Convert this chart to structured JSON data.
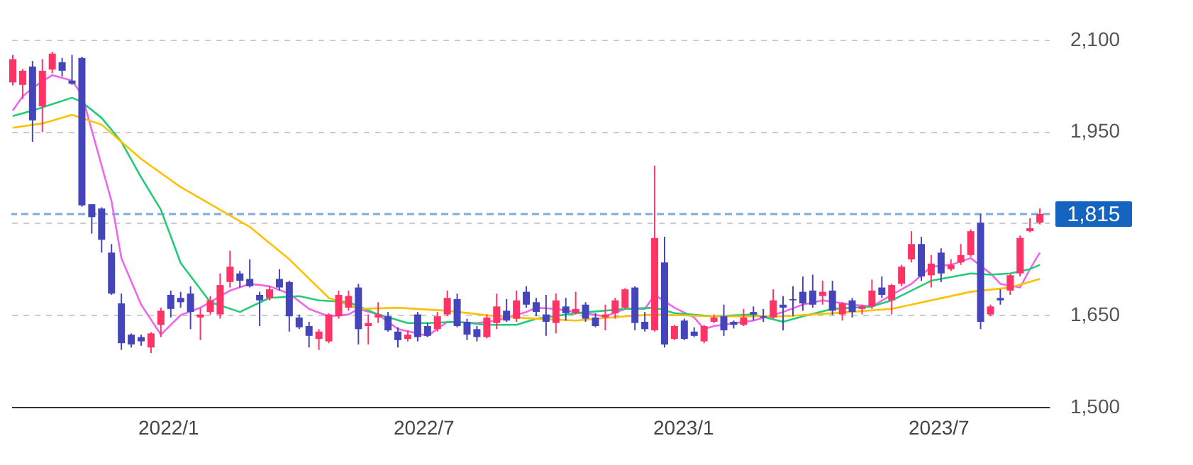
{
  "chart_data": {
    "type": "candlestick",
    "x": [
      "2021-09-13",
      "2021-09-20",
      "2021-09-27",
      "2021-10-04",
      "2021-10-11",
      "2021-10-18",
      "2021-10-25",
      "2021-11-01",
      "2021-11-08",
      "2021-11-15",
      "2021-11-22",
      "2021-11-29",
      "2021-12-06",
      "2021-12-13",
      "2021-12-20",
      "2021-12-27",
      "2022-01-03",
      "2022-01-10",
      "2022-01-17",
      "2022-01-24",
      "2022-01-31",
      "2022-02-07",
      "2022-02-14",
      "2022-02-21",
      "2022-02-28",
      "2022-03-07",
      "2022-03-14",
      "2022-03-21",
      "2022-03-28",
      "2022-04-04",
      "2022-04-11",
      "2022-04-18",
      "2022-04-25",
      "2022-05-02",
      "2022-05-09",
      "2022-05-16",
      "2022-05-23",
      "2022-05-30",
      "2022-06-06",
      "2022-06-13",
      "2022-06-20",
      "2022-06-27",
      "2022-07-04",
      "2022-07-11",
      "2022-07-18",
      "2022-07-25",
      "2022-08-01",
      "2022-08-08",
      "2022-08-15",
      "2022-08-22",
      "2022-08-29",
      "2022-09-05",
      "2022-09-12",
      "2022-09-19",
      "2022-09-26",
      "2022-10-03",
      "2022-10-10",
      "2022-10-17",
      "2022-10-24",
      "2022-10-31",
      "2022-11-07",
      "2022-11-14",
      "2022-11-21",
      "2022-11-28",
      "2022-12-05",
      "2022-12-12",
      "2022-12-19",
      "2022-12-26",
      "2023-01-02",
      "2023-01-09",
      "2023-01-16",
      "2023-01-23",
      "2023-01-30",
      "2023-02-06",
      "2023-02-13",
      "2023-02-20",
      "2023-02-27",
      "2023-03-06",
      "2023-03-13",
      "2023-03-20",
      "2023-03-27",
      "2023-04-03",
      "2023-04-10",
      "2023-04-17",
      "2023-04-24",
      "2023-05-01",
      "2023-05-08",
      "2023-05-15",
      "2023-05-22",
      "2023-05-29",
      "2023-06-05",
      "2023-06-12",
      "2023-06-19",
      "2023-06-26",
      "2023-07-03",
      "2023-07-10",
      "2023-07-17",
      "2023-07-24",
      "2023-07-31",
      "2023-08-07",
      "2023-08-14",
      "2023-08-21",
      "2023-08-28",
      "2023-09-04",
      "2023-09-11"
    ],
    "ohlc": [
      [
        2030,
        2075,
        2025,
        2068
      ],
      [
        2026,
        2052,
        2003,
        2049
      ],
      [
        2056,
        2065,
        1933,
        1968
      ],
      [
        1991,
        2068,
        1949,
        2049
      ],
      [
        2051,
        2080,
        2045,
        2077
      ],
      [
        2063,
        2070,
        2040,
        2049
      ],
      [
        2033,
        2075,
        2026,
        2028
      ],
      [
        2070,
        2072,
        1827,
        1829
      ],
      [
        1831,
        1831,
        1783,
        1810
      ],
      [
        1824,
        1826,
        1752,
        1773
      ],
      [
        1752,
        1766,
        1683,
        1685
      ],
      [
        1669,
        1685,
        1593,
        1604
      ],
      [
        1618,
        1620,
        1597,
        1602
      ],
      [
        1614,
        1618,
        1600,
        1607
      ],
      [
        1597,
        1622,
        1588,
        1620
      ],
      [
        1634,
        1662,
        1614,
        1657
      ],
      [
        1683,
        1690,
        1646,
        1660
      ],
      [
        1678,
        1688,
        1662,
        1671
      ],
      [
        1685,
        1697,
        1627,
        1655
      ],
      [
        1646,
        1662,
        1609,
        1651
      ],
      [
        1655,
        1681,
        1651,
        1674
      ],
      [
        1651,
        1718,
        1644,
        1699
      ],
      [
        1704,
        1755,
        1695,
        1729
      ],
      [
        1718,
        1722,
        1695,
        1706
      ],
      [
        1709,
        1741,
        1695,
        1697
      ],
      [
        1683,
        1688,
        1632,
        1674
      ],
      [
        1678,
        1697,
        1674,
        1692
      ],
      [
        1709,
        1725,
        1690,
        1695
      ],
      [
        1704,
        1706,
        1623,
        1648
      ],
      [
        1646,
        1651,
        1627,
        1630
      ],
      [
        1632,
        1639,
        1597,
        1616
      ],
      [
        1611,
        1627,
        1593,
        1623
      ],
      [
        1607,
        1653,
        1604,
        1651
      ],
      [
        1648,
        1690,
        1644,
        1683
      ],
      [
        1662,
        1690,
        1657,
        1681
      ],
      [
        1695,
        1701,
        1602,
        1627
      ],
      [
        1632,
        1651,
        1602,
        1637
      ],
      [
        1646,
        1671,
        1637,
        1651
      ],
      [
        1648,
        1655,
        1623,
        1625
      ],
      [
        1623,
        1630,
        1597,
        1609
      ],
      [
        1611,
        1625,
        1607,
        1618
      ],
      [
        1651,
        1655,
        1607,
        1614
      ],
      [
        1632,
        1637,
        1614,
        1616
      ],
      [
        1627,
        1655,
        1623,
        1648
      ],
      [
        1651,
        1690,
        1648,
        1678
      ],
      [
        1676,
        1685,
        1630,
        1632
      ],
      [
        1639,
        1644,
        1609,
        1618
      ],
      [
        1627,
        1632,
        1607,
        1614
      ],
      [
        1614,
        1651,
        1612,
        1646
      ],
      [
        1637,
        1685,
        1627,
        1664
      ],
      [
        1657,
        1676,
        1639,
        1641
      ],
      [
        1644,
        1690,
        1639,
        1674
      ],
      [
        1688,
        1697,
        1662,
        1667
      ],
      [
        1671,
        1678,
        1648,
        1655
      ],
      [
        1651,
        1683,
        1616,
        1639
      ],
      [
        1637,
        1685,
        1620,
        1674
      ],
      [
        1664,
        1678,
        1641,
        1653
      ],
      [
        1653,
        1688,
        1651,
        1660
      ],
      [
        1667,
        1671,
        1639,
        1644
      ],
      [
        1646,
        1653,
        1630,
        1632
      ],
      [
        1646,
        1667,
        1625,
        1651
      ],
      [
        1653,
        1678,
        1644,
        1674
      ],
      [
        1662,
        1694,
        1660,
        1692
      ],
      [
        1695,
        1697,
        1625,
        1637
      ],
      [
        1639,
        1655,
        1623,
        1627
      ],
      [
        1625,
        1894,
        1623,
        1776
      ],
      [
        1736,
        1778,
        1597,
        1602
      ],
      [
        1611,
        1634,
        1609,
        1632
      ],
      [
        1641,
        1644,
        1609,
        1611
      ],
      [
        1623,
        1630,
        1614,
        1616
      ],
      [
        1607,
        1634,
        1604,
        1632
      ],
      [
        1639,
        1651,
        1637,
        1646
      ],
      [
        1648,
        1667,
        1616,
        1625
      ],
      [
        1639,
        1641,
        1628,
        1634
      ],
      [
        1634,
        1660,
        1632,
        1646
      ],
      [
        1655,
        1664,
        1641,
        1651
      ],
      [
        1648,
        1660,
        1639,
        1646
      ],
      [
        1646,
        1692,
        1644,
        1674
      ],
      [
        1667,
        1681,
        1625,
        1662
      ],
      [
        1676,
        1697,
        1648,
        1674
      ],
      [
        1688,
        1713,
        1657,
        1669
      ],
      [
        1690,
        1716,
        1662,
        1667
      ],
      [
        1681,
        1706,
        1667,
        1688
      ],
      [
        1690,
        1706,
        1650,
        1657
      ],
      [
        1651,
        1671,
        1641,
        1669
      ],
      [
        1674,
        1678,
        1646,
        1655
      ],
      [
        1660,
        1667,
        1651,
        1664
      ],
      [
        1664,
        1708,
        1660,
        1690
      ],
      [
        1695,
        1713,
        1678,
        1683
      ],
      [
        1674,
        1701,
        1651,
        1699
      ],
      [
        1701,
        1732,
        1697,
        1729
      ],
      [
        1741,
        1787,
        1736,
        1766
      ],
      [
        1766,
        1778,
        1706,
        1713
      ],
      [
        1715,
        1748,
        1695,
        1734
      ],
      [
        1752,
        1759,
        1704,
        1718
      ],
      [
        1725,
        1741,
        1722,
        1732
      ],
      [
        1736,
        1766,
        1732,
        1748
      ],
      [
        1748,
        1790,
        1745,
        1787
      ],
      [
        1801,
        1815,
        1627,
        1639
      ],
      [
        1651,
        1667,
        1648,
        1664
      ],
      [
        1678,
        1692,
        1667,
        1674
      ],
      [
        1690,
        1718,
        1683,
        1715
      ],
      [
        1718,
        1780,
        1713,
        1776
      ],
      [
        1787,
        1808,
        1785,
        1792
      ],
      [
        1801,
        1824,
        1798,
        1815
      ]
    ],
    "colors": [
      "#ff3366",
      "#ff3366",
      "#4444bb",
      "#ff3366",
      "#ff3366",
      "#4444bb",
      "#4444bb",
      "#4444bb",
      "#4444bb",
      "#4444bb",
      "#4444bb",
      "#4444bb",
      "#4444bb",
      "#4444bb",
      "#ff3366",
      "#ff3366",
      "#4444bb",
      "#4444bb",
      "#4444bb",
      "#ff3366",
      "#ff3366",
      "#ff3366",
      "#ff3366",
      "#4444bb",
      "#4444bb",
      "#4444bb",
      "#ff3366",
      "#4444bb",
      "#4444bb",
      "#4444bb",
      "#4444bb",
      "#ff3366",
      "#ff3366",
      "#ff3366",
      "#ff3366",
      "#4444bb",
      "#ff3366",
      "#ff3366",
      "#4444bb",
      "#4444bb",
      "#ff3366",
      "#4444bb",
      "#4444bb",
      "#ff3366",
      "#ff3366",
      "#4444bb",
      "#4444bb",
      "#4444bb",
      "#ff3366",
      "#ff3366",
      "#4444bb",
      "#ff3366",
      "#4444bb",
      "#4444bb",
      "#4444bb",
      "#ff3366",
      "#4444bb",
      "#ff3366",
      "#4444bb",
      "#4444bb",
      "#ff3366",
      "#ff3366",
      "#ff3366",
      "#4444bb",
      "#4444bb",
      "#ff3366",
      "#4444bb",
      "#ff3366",
      "#4444bb",
      "#4444bb",
      "#ff3366",
      "#ff3366",
      "#4444bb",
      "#4444bb",
      "#ff3366",
      "#4444bb",
      "#4444bb",
      "#ff3366",
      "#4444bb",
      "#4444bb",
      "#4444bb",
      "#4444bb",
      "#ff3366",
      "#4444bb",
      "#ff3366",
      "#4444bb",
      "#ff3366",
      "#ff3366",
      "#4444bb",
      "#ff3366",
      "#ff3366",
      "#ff3366",
      "#4444bb",
      "#ff3366",
      "#4444bb",
      "#ff3366",
      "#ff3366",
      "#ff3366",
      "#4444bb",
      "#ff3366",
      "#4444bb",
      "#ff3366",
      "#ff3366",
      "#ff3366",
      "#ff3366"
    ],
    "series": [
      {
        "type": "line",
        "color": "#ee66ee",
        "x": [
          "2021-09-13",
          "2021-09-20",
          "2021-09-27",
          "2021-10-11",
          "2021-10-25",
          "2021-11-01",
          "2021-11-08",
          "2021-11-22",
          "2021-11-29",
          "2021-12-13",
          "2021-12-27",
          "2022-01-10",
          "2022-01-24",
          "2022-02-14",
          "2022-02-28",
          "2022-03-14",
          "2022-03-28",
          "2022-04-11",
          "2022-04-25",
          "2022-05-09",
          "2022-05-16",
          "2022-05-30",
          "2022-06-13",
          "2022-07-04",
          "2022-07-18",
          "2022-08-08",
          "2022-08-22",
          "2022-09-12",
          "2022-09-19",
          "2022-10-03",
          "2022-10-17",
          "2022-11-07",
          "2022-11-21",
          "2022-12-05",
          "2022-12-12",
          "2022-12-26",
          "2023-01-09",
          "2023-01-16",
          "2023-01-23",
          "2023-02-20",
          "2023-03-13",
          "2023-03-27",
          "2023-04-10",
          "2023-05-01",
          "2023-05-15",
          "2023-05-29",
          "2023-06-12",
          "2023-06-26",
          "2023-07-10",
          "2023-07-24",
          "2023-08-07",
          "2023-08-14",
          "2023-08-28",
          "2023-09-04",
          "2023-09-11"
        ],
        "values": [
          1984,
          2007,
          2021,
          2042,
          2033,
          2010,
          1952,
          1836,
          1743,
          1667,
          1618,
          1650,
          1662,
          1690,
          1701,
          1697,
          1685,
          1660,
          1648,
          1651,
          1660,
          1651,
          1627,
          1616,
          1639,
          1637,
          1641,
          1655,
          1662,
          1660,
          1655,
          1648,
          1660,
          1660,
          1683,
          1662,
          1646,
          1627,
          1632,
          1641,
          1655,
          1667,
          1674,
          1667,
          1664,
          1683,
          1701,
          1729,
          1732,
          1743,
          1718,
          1701,
          1695,
          1725,
          1752
        ]
      },
      {
        "type": "line",
        "color": "#22cc77",
        "x": [
          "2021-09-13",
          "2021-09-27",
          "2021-10-25",
          "2021-11-01",
          "2021-11-15",
          "2021-11-29",
          "2021-12-13",
          "2021-12-27",
          "2022-01-10",
          "2022-01-31",
          "2022-02-21",
          "2022-03-14",
          "2022-04-04",
          "2022-04-18",
          "2022-05-09",
          "2022-05-30",
          "2022-06-20",
          "2022-07-04",
          "2022-07-25",
          "2022-08-15",
          "2022-09-05",
          "2022-09-19",
          "2022-10-17",
          "2022-11-21",
          "2022-12-12",
          "2022-12-26",
          "2023-01-23",
          "2023-02-20",
          "2023-03-13",
          "2023-03-27",
          "2023-04-17",
          "2023-05-01",
          "2023-05-15",
          "2023-05-29",
          "2023-06-26",
          "2023-07-24",
          "2023-08-07",
          "2023-08-21",
          "2023-09-04",
          "2023-09-11"
        ],
        "values": [
          1975,
          1984,
          2005,
          1998,
          1972,
          1933,
          1875,
          1822,
          1735,
          1671,
          1655,
          1678,
          1681,
          1674,
          1671,
          1651,
          1637,
          1637,
          1639,
          1634,
          1634,
          1644,
          1653,
          1660,
          1662,
          1653,
          1648,
          1651,
          1639,
          1648,
          1660,
          1662,
          1664,
          1674,
          1706,
          1718,
          1716,
          1718,
          1725,
          1732
        ]
      },
      {
        "type": "line",
        "color": "#ffc000",
        "x": [
          "2021-09-13",
          "2021-10-04",
          "2021-10-25",
          "2021-11-15",
          "2021-12-13",
          "2022-01-10",
          "2022-02-28",
          "2022-03-28",
          "2022-04-25",
          "2022-05-16",
          "2022-06-13",
          "2022-07-18",
          "2022-08-22",
          "2022-09-19",
          "2022-10-17",
          "2022-11-21",
          "2022-12-12",
          "2023-01-23",
          "2023-03-13",
          "2023-04-17",
          "2023-05-29",
          "2023-06-12",
          "2023-07-24",
          "2023-08-21",
          "2023-09-11"
        ],
        "values": [
          1956,
          1963,
          1977,
          1961,
          1905,
          1859,
          1794,
          1741,
          1678,
          1660,
          1662,
          1657,
          1648,
          1644,
          1641,
          1648,
          1651,
          1648,
          1648,
          1653,
          1660,
          1667,
          1688,
          1695,
          1709
        ]
      }
    ],
    "xlim": [
      "2021-09-12",
      "2023-09-18"
    ],
    "xticks": [
      {
        "value": "2022-01-01",
        "label": "2022/1"
      },
      {
        "value": "2022-07-01",
        "label": "2022/7"
      },
      {
        "value": "2023-01-01",
        "label": "2023/1"
      },
      {
        "value": "2023-07-01",
        "label": "2023/7"
      }
    ],
    "ylim": [
      1500,
      2160
    ],
    "yticks": [
      {
        "value": 1500,
        "label": "1,500"
      },
      {
        "value": 1650,
        "label": "1,650"
      },
      {
        "value": 1800,
        "label": null
      },
      {
        "value": 1950,
        "label": "1,950"
      },
      {
        "value": 2100,
        "label": "2,100"
      }
    ],
    "ref_lines": [
      {
        "axis": "y",
        "value": 1815,
        "label": "1,815",
        "color": "#1565c0",
        "line_style": "dashed"
      }
    ],
    "grid": "y"
  }
}
